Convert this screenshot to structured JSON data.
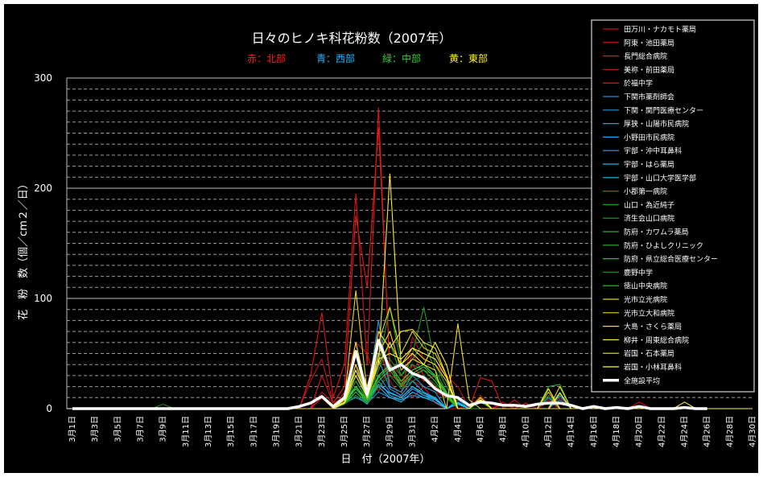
{
  "chart_data": {
    "type": "line",
    "title": "日々のヒノキ科花粉数（2007年）",
    "subtitle": [
      {
        "text": "赤：北部",
        "color": "#ff2020"
      },
      {
        "text": "青：西部",
        "color": "#22b8ff"
      },
      {
        "text": "緑：中部",
        "color": "#33cc33"
      },
      {
        "text": "黄：東部",
        "color": "#ffee33"
      }
    ],
    "xlabel": "日　付（2007年）",
    "ylabel": "花　粉　数（個／cm２／日）",
    "ylim": [
      0,
      300
    ],
    "yticks": [
      0,
      100,
      200,
      300
    ],
    "minor_grid_step": 10,
    "grid": true,
    "legend_position": "top-right",
    "x_start": "2007-03-01",
    "x_tick_labels": [
      "3月1日",
      "3月3日",
      "3月5日",
      "3月7日",
      "3月9日",
      "3月11日",
      "3月13日",
      "3月15日",
      "3月17日",
      "3月19日",
      "3月21日",
      "3月23日",
      "3月25日",
      "3月27日",
      "3月29日",
      "3月31日",
      "4月2日",
      "4月4日",
      "4月6日",
      "4月8日",
      "4月10日",
      "4月12日",
      "4月14日",
      "4月16日",
      "4月18日",
      "4月20日",
      "4月22日",
      "4月24日",
      "4月26日",
      "4月28日",
      "4月30日"
    ],
    "series": [
      {
        "name": "田万川・ナカモト薬局",
        "color": "#cc1111",
        "values": {
          "2007-03-22": 25,
          "2007-03-23": 45,
          "2007-03-24": 5,
          "2007-03-25": 20,
          "2007-03-26": 60,
          "2007-03-27": 50,
          "2007-03-28": 15,
          "2007-03-29": 40,
          "2007-03-30": 30,
          "2007-03-31": 25,
          "2007-04-01": 20,
          "2007-04-02": 15,
          "2007-04-03": 10,
          "2007-04-05": 3,
          "2007-04-06": 8,
          "2007-04-08": 4,
          "2007-04-12": 6
        }
      },
      {
        "name": "阿東・池田薬局",
        "color": "#dd1515",
        "values": {
          "2007-03-22": 30,
          "2007-03-23": 87,
          "2007-03-24": 10,
          "2007-03-25": 40,
          "2007-03-26": 195,
          "2007-03-27": 40,
          "2007-03-28": 273,
          "2007-03-29": 30,
          "2007-03-30": 25,
          "2007-03-31": 10,
          "2007-04-01": 20,
          "2007-04-02": 5,
          "2007-04-06": 28,
          "2007-04-07": 25,
          "2007-04-09": 8,
          "2007-04-12": 18,
          "2007-04-20": 6
        }
      },
      {
        "name": "長門総合病院",
        "color": "#e01a1a",
        "values": {
          "2007-03-23": 30,
          "2007-03-24": 5,
          "2007-03-25": 20,
          "2007-03-26": 175,
          "2007-03-27": 110,
          "2007-03-28": 255,
          "2007-03-29": 40,
          "2007-03-30": 20,
          "2007-03-31": 50,
          "2007-04-01": 30,
          "2007-04-02": 20,
          "2007-04-03": 10,
          "2007-04-06": 10,
          "2007-04-08": 6,
          "2007-04-12": 8
        }
      },
      {
        "name": "美祢・前田薬局",
        "color": "#c01010",
        "values": {
          "2007-03-23": 15,
          "2007-03-24": 5,
          "2007-03-25": 10,
          "2007-03-26": 40,
          "2007-03-27": 20,
          "2007-03-28": 70,
          "2007-03-29": 25,
          "2007-03-30": 10,
          "2007-03-31": 65,
          "2007-04-01": 45,
          "2007-04-02": 40,
          "2007-04-03": 30,
          "2007-04-04": 20,
          "2007-04-06": 12,
          "2007-04-08": 6,
          "2007-04-13": 10
        }
      },
      {
        "name": "於福中学",
        "color": "#ee2020",
        "values": {
          "2007-03-23": 10,
          "2007-03-25": 15,
          "2007-03-26": 35,
          "2007-03-27": 15,
          "2007-03-28": 60,
          "2007-03-29": 20,
          "2007-03-30": 15,
          "2007-03-31": 40,
          "2007-04-01": 25,
          "2007-04-02": 30,
          "2007-04-03": 15,
          "2007-04-06": 8,
          "2007-04-10": 5
        }
      },
      {
        "name": "下関市薬剤師会",
        "color": "#1a8fd0",
        "values": {
          "2007-03-25": 5,
          "2007-03-26": 10,
          "2007-03-27": 5,
          "2007-03-28": 15,
          "2007-03-29": 10,
          "2007-03-30": 8,
          "2007-03-31": 12,
          "2007-04-01": 10,
          "2007-04-02": 8,
          "2007-04-04": 4
        }
      },
      {
        "name": "下関・関門医療センター",
        "color": "#1c98d8",
        "values": {
          "2007-03-25": 8,
          "2007-03-26": 20,
          "2007-03-27": 6,
          "2007-03-28": 30,
          "2007-03-29": 15,
          "2007-03-30": 10,
          "2007-03-31": 20,
          "2007-04-01": 12,
          "2007-04-02": 10,
          "2007-04-04": 5,
          "2007-04-13": 8
        }
      },
      {
        "name": "厚狭・山陽市民病院",
        "color": "#1ea0e0",
        "values": {
          "2007-03-25": 10,
          "2007-03-26": 35,
          "2007-03-27": 10,
          "2007-03-28": 80,
          "2007-03-29": 20,
          "2007-03-30": 15,
          "2007-03-31": 30,
          "2007-04-01": 20,
          "2007-04-02": 15,
          "2007-04-04": 8,
          "2007-04-12": 10
        }
      },
      {
        "name": "小野田市民病院",
        "color": "#20a8e6",
        "values": {
          "2007-03-25": 6,
          "2007-03-26": 25,
          "2007-03-27": 8,
          "2007-03-28": 45,
          "2007-03-29": 18,
          "2007-03-30": 12,
          "2007-03-31": 25,
          "2007-04-01": 15,
          "2007-04-02": 10,
          "2007-04-04": 6
        }
      },
      {
        "name": "宇部・沖中耳鼻科",
        "color": "#22b0ec",
        "values": {
          "2007-03-25": 5,
          "2007-03-26": 15,
          "2007-03-27": 5,
          "2007-03-28": 25,
          "2007-03-29": 12,
          "2007-03-30": 8,
          "2007-03-31": 18,
          "2007-04-01": 12,
          "2007-04-02": 8,
          "2007-04-04": 5,
          "2007-04-13": 12
        }
      },
      {
        "name": "宇部・はら薬局",
        "color": "#24b8f0",
        "values": {
          "2007-03-25": 4,
          "2007-03-26": 12,
          "2007-03-27": 4,
          "2007-03-28": 20,
          "2007-03-29": 10,
          "2007-03-30": 6,
          "2007-03-31": 15,
          "2007-04-01": 10,
          "2007-04-02": 6,
          "2007-04-04": 4
        }
      },
      {
        "name": "宇部・山口大学医学部",
        "color": "#26c0f6",
        "values": {
          "2007-03-25": 6,
          "2007-03-26": 18,
          "2007-03-27": 6,
          "2007-03-28": 22,
          "2007-03-29": 14,
          "2007-03-30": 10,
          "2007-03-31": 20,
          "2007-04-01": 14,
          "2007-04-02": 9,
          "2007-04-04": 5
        }
      },
      {
        "name": "小郡第一病院",
        "color": "#1e8f1e",
        "values": {
          "2007-03-09": 4,
          "2007-03-25": 10,
          "2007-03-26": 40,
          "2007-03-27": 15,
          "2007-03-28": 50,
          "2007-03-29": 45,
          "2007-03-30": 30,
          "2007-03-31": 40,
          "2007-04-01": 35,
          "2007-04-02": 30,
          "2007-04-03": 15,
          "2007-04-06": 8,
          "2007-04-12": 12
        }
      },
      {
        "name": "山口・為近純子",
        "color": "#229922",
        "values": {
          "2007-03-25": 8,
          "2007-03-26": 30,
          "2007-03-27": 10,
          "2007-03-28": 40,
          "2007-03-29": 92,
          "2007-03-30": 40,
          "2007-03-31": 50,
          "2007-04-01": 92,
          "2007-04-02": 40,
          "2007-04-03": 20,
          "2007-04-06": 10,
          "2007-04-13": 15
        }
      },
      {
        "name": "済生会山口病院",
        "color": "#26a326",
        "values": {
          "2007-03-25": 6,
          "2007-03-26": 25,
          "2007-03-27": 8,
          "2007-03-28": 35,
          "2007-03-29": 60,
          "2007-03-30": 30,
          "2007-03-31": 45,
          "2007-04-01": 60,
          "2007-04-02": 35,
          "2007-04-03": 15,
          "2007-04-06": 8
        }
      },
      {
        "name": "防府・カワムラ薬局",
        "color": "#2aad2a",
        "values": {
          "2007-03-25": 5,
          "2007-03-26": 20,
          "2007-03-27": 6,
          "2007-03-28": 30,
          "2007-03-29": 40,
          "2007-03-30": 25,
          "2007-03-31": 35,
          "2007-04-01": 40,
          "2007-04-02": 30,
          "2007-04-03": 12,
          "2007-04-12": 20,
          "2007-04-13": 22
        }
      },
      {
        "name": "防府・ひよしクリニック",
        "color": "#2eb72e",
        "values": {
          "2007-03-25": 4,
          "2007-03-26": 15,
          "2007-03-27": 5,
          "2007-03-28": 25,
          "2007-03-29": 35,
          "2007-03-30": 20,
          "2007-03-31": 30,
          "2007-04-01": 35,
          "2007-04-02": 25,
          "2007-04-03": 10,
          "2007-04-06": 6
        }
      },
      {
        "name": "防府・県立総合医療センター",
        "color": "#32c132",
        "values": {
          "2007-03-25": 5,
          "2007-03-26": 18,
          "2007-03-27": 6,
          "2007-03-28": 28,
          "2007-03-29": 38,
          "2007-03-30": 22,
          "2007-03-31": 32,
          "2007-04-01": 38,
          "2007-04-02": 28,
          "2007-04-03": 12,
          "2007-04-06": 8
        }
      },
      {
        "name": "鹿野中学",
        "color": "#1c851c",
        "values": {
          "2007-03-25": 4,
          "2007-03-26": 12,
          "2007-03-27": 5,
          "2007-03-28": 20,
          "2007-03-29": 30,
          "2007-03-30": 18,
          "2007-03-31": 25,
          "2007-04-01": 30,
          "2007-04-02": 22,
          "2007-04-03": 10,
          "2007-04-06": 6
        }
      },
      {
        "name": "徳山中央病院",
        "color": "#36cb36",
        "values": {
          "2007-03-25": 6,
          "2007-03-26": 20,
          "2007-03-27": 8,
          "2007-03-28": 30,
          "2007-03-29": 40,
          "2007-03-30": 25,
          "2007-03-31": 35,
          "2007-04-01": 40,
          "2007-04-02": 30,
          "2007-04-03": 14,
          "2007-04-06": 8
        }
      },
      {
        "name": "光市立光病院",
        "color": "#e6d020",
        "values": {
          "2007-03-25": 10,
          "2007-03-26": 50,
          "2007-03-27": 20,
          "2007-03-28": 60,
          "2007-03-29": 92,
          "2007-03-30": 50,
          "2007-03-31": 70,
          "2007-04-01": 55,
          "2007-04-02": 50,
          "2007-04-03": 30,
          "2007-04-06": 10,
          "2007-04-12": 15
        }
      },
      {
        "name": "光市立大和病院",
        "color": "#ecd624",
        "values": {
          "2007-03-25": 8,
          "2007-03-26": 107,
          "2007-03-27": 15,
          "2007-03-28": 40,
          "2007-03-29": 60,
          "2007-03-30": 40,
          "2007-03-31": 55,
          "2007-04-01": 45,
          "2007-04-02": 40,
          "2007-04-03": 25,
          "2007-04-06": 8
        }
      },
      {
        "name": "大島・さくら薬局",
        "color": "#f2dc28",
        "values": {
          "2007-03-25": 6,
          "2007-03-26": 40,
          "2007-03-27": 10,
          "2007-03-28": 50,
          "2007-03-29": 70,
          "2007-03-30": 35,
          "2007-03-31": 45,
          "2007-04-01": 40,
          "2007-04-02": 35,
          "2007-04-04": 77,
          "2007-04-05": 8,
          "2007-04-13": 20
        }
      },
      {
        "name": "柳井・周東総合病院",
        "color": "#f8e22c",
        "values": {
          "2007-03-25": 8,
          "2007-03-26": 60,
          "2007-03-27": 15,
          "2007-03-28": 70,
          "2007-03-29": 55,
          "2007-03-30": 70,
          "2007-03-31": 72,
          "2007-04-01": 60,
          "2007-04-02": 55,
          "2007-04-03": 30,
          "2007-04-06": 10
        }
      },
      {
        "name": "岩国・石本薬局",
        "color": "#fee830",
        "values": {
          "2007-03-25": 5,
          "2007-03-26": 30,
          "2007-03-27": 10,
          "2007-03-28": 40,
          "2007-03-29": 213,
          "2007-03-30": 40,
          "2007-03-31": 50,
          "2007-04-01": 40,
          "2007-04-02": 60,
          "2007-04-03": 40,
          "2007-04-06": 8,
          "2007-04-12": 18,
          "2007-04-24": 6
        }
      },
      {
        "name": "岩国・小林耳鼻科",
        "color": "#fff040",
        "values": {
          "2007-03-25": 6,
          "2007-03-26": 35,
          "2007-03-27": 12,
          "2007-03-28": 45,
          "2007-03-29": 50,
          "2007-03-30": 45,
          "2007-03-31": 55,
          "2007-04-01": 50,
          "2007-04-02": 45,
          "2007-04-03": 28,
          "2007-04-06": 8,
          "2007-04-13": 14
        }
      },
      {
        "name": "全施設平均",
        "color": "#ffffff",
        "values": {
          "2007-03-01": 0,
          "2007-03-21": 2,
          "2007-03-22": 5,
          "2007-03-23": 11,
          "2007-03-24": 2,
          "2007-03-25": 10,
          "2007-03-26": 52,
          "2007-03-27": 13,
          "2007-03-28": 62,
          "2007-03-29": 35,
          "2007-03-30": 40,
          "2007-03-31": 32,
          "2007-04-01": 28,
          "2007-04-02": 18,
          "2007-04-03": 12,
          "2007-04-04": 10,
          "2007-04-05": 3,
          "2007-04-06": 6,
          "2007-04-07": 5,
          "2007-04-08": 3,
          "2007-04-09": 3,
          "2007-04-10": 2,
          "2007-04-11": 4,
          "2007-04-12": 5,
          "2007-04-13": 5,
          "2007-04-14": 3,
          "2007-04-16": 2,
          "2007-04-18": 1,
          "2007-04-20": 2,
          "2007-04-24": 1,
          "2007-04-26": 0
        }
      }
    ]
  }
}
